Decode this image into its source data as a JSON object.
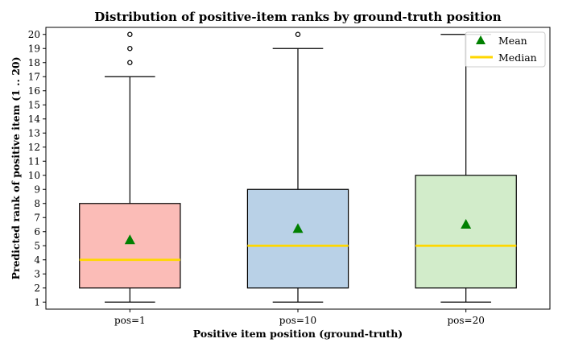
{
  "chart_data": {
    "type": "boxplot",
    "title": "Distribution of positive-item ranks by ground-truth position",
    "xlabel": "Positive item position (ground-truth)",
    "ylabel": "Predicted rank of positive item (1 .. 20)",
    "ylim": [
      0.5,
      20.5
    ],
    "yticks": [
      1,
      2,
      3,
      4,
      5,
      6,
      7,
      8,
      9,
      10,
      11,
      12,
      13,
      14,
      15,
      16,
      17,
      18,
      19,
      20
    ],
    "categories": [
      "pos=1",
      "pos=10",
      "pos=20"
    ],
    "boxes": [
      {
        "label": "pos=1",
        "whisker_low": 1,
        "q1": 2,
        "median": 4,
        "q3": 8,
        "whisker_high": 17,
        "mean": 5.4,
        "outliers": [
          18,
          19,
          20
        ],
        "color": "#fbbcb7"
      },
      {
        "label": "pos=10",
        "whisker_low": 1,
        "q1": 2,
        "median": 5,
        "q3": 9,
        "whisker_high": 19,
        "mean": 6.2,
        "outliers": [
          20
        ],
        "color": "#b9d1e7"
      },
      {
        "label": "pos=20",
        "whisker_low": 1,
        "q1": 2,
        "median": 5,
        "q3": 10,
        "whisker_high": 20,
        "mean": 6.5,
        "outliers": [],
        "color": "#d2ecca"
      }
    ],
    "legend": {
      "placement": "top-right",
      "entries": [
        {
          "name": "Mean",
          "marker": "triangle",
          "color": "#008000"
        },
        {
          "name": "Median",
          "marker": "line",
          "color": "#ffd700"
        }
      ]
    },
    "colors": {
      "mean": "#008000",
      "median": "#ffd700",
      "edge": "#000000"
    }
  }
}
